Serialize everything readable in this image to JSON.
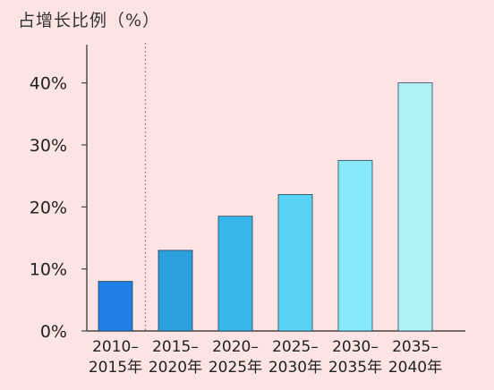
{
  "chart_data": {
    "type": "bar",
    "title": "占增长比例（%）",
    "xlabel": "",
    "ylabel": "",
    "ylim": [
      0,
      45
    ],
    "yticks": [
      0,
      10,
      20,
      30,
      40
    ],
    "ytick_labels": [
      "0%",
      "10%",
      "20%",
      "30%",
      "40%"
    ],
    "categories": [
      [
        "2010–",
        "2015年"
      ],
      [
        "2015–",
        "2020年"
      ],
      [
        "2020–",
        "2025年"
      ],
      [
        "2025–",
        "2030年"
      ],
      [
        "2030–",
        "2035年"
      ],
      [
        "2035–",
        "2040年"
      ]
    ],
    "values": [
      8,
      13,
      18.5,
      22,
      27.5,
      40
    ],
    "colors": [
      "#1f7fe6",
      "#2aa0dd",
      "#37b6ea",
      "#58d3f6",
      "#86eafa",
      "#aef2f6"
    ],
    "divider_after_index": 0,
    "grid": false,
    "legend": "none"
  }
}
